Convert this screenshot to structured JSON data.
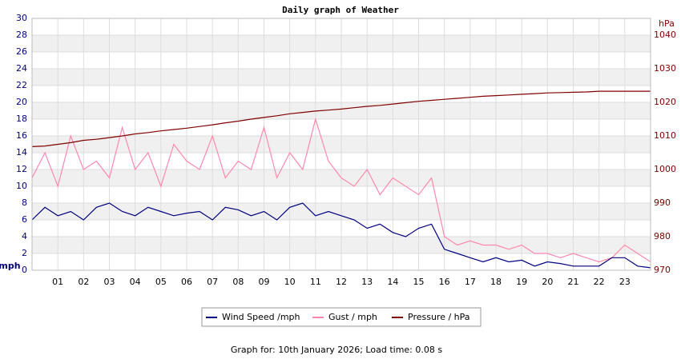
{
  "chart_data": {
    "type": "line",
    "title": "Daily graph of Weather",
    "y_label": "mph",
    "y2_label": "hPa",
    "footer": "Graph for: 10th January 2026; Load time: 0.08 s",
    "x": [
      0,
      0.5,
      1,
      1.5,
      2,
      2.5,
      3,
      3.5,
      4,
      4.5,
      5,
      5.5,
      6,
      6.5,
      7,
      7.5,
      8,
      8.5,
      9,
      9.5,
      10,
      10.5,
      11,
      11.5,
      12,
      12.5,
      13,
      13.5,
      14,
      14.5,
      15,
      15.5,
      16,
      16.5,
      17,
      17.5,
      18,
      18.5,
      19,
      19.5,
      20,
      20.5,
      21,
      21.5,
      22,
      22.5,
      23,
      23.5,
      24
    ],
    "xlim": [
      0,
      24
    ],
    "xticks": [
      {
        "value": 1,
        "label": "01"
      },
      {
        "value": 2,
        "label": "02"
      },
      {
        "value": 3,
        "label": "03"
      },
      {
        "value": 4,
        "label": "04"
      },
      {
        "value": 5,
        "label": "05"
      },
      {
        "value": 6,
        "label": "06"
      },
      {
        "value": 7,
        "label": "07"
      },
      {
        "value": 8,
        "label": "08"
      },
      {
        "value": 9,
        "label": "09"
      },
      10,
      11,
      12,
      13,
      14,
      15,
      16,
      17,
      18,
      19,
      20,
      21,
      22,
      23
    ],
    "ylim": [
      0,
      30
    ],
    "yticks": [
      0,
      2,
      4,
      6,
      8,
      10,
      12,
      14,
      16,
      18,
      20,
      22,
      24,
      26,
      28,
      30
    ],
    "y2lim": [
      970,
      1045
    ],
    "y2ticks": [
      970,
      980,
      990,
      1000,
      1010,
      1020,
      1030,
      1040
    ],
    "grid": true,
    "series": [
      {
        "name": "Gust / mph",
        "color": "#ff88aa",
        "values": [
          11,
          14,
          10,
          16,
          12,
          13,
          11,
          17,
          12,
          14,
          10,
          15,
          13,
          12,
          16,
          11,
          13,
          12,
          17,
          11,
          14,
          12,
          18,
          13,
          11,
          10,
          12,
          9,
          11,
          10,
          9,
          11,
          4,
          3,
          3.5,
          3,
          3,
          2.5,
          3,
          2,
          2,
          1.5,
          2,
          1.5,
          1,
          1.5,
          3,
          2,
          1
        ]
      },
      {
        "name": "Wind Speed /mph",
        "color": "#000080",
        "values": [
          6,
          7.5,
          6.5,
          7,
          6,
          7.5,
          8,
          7,
          6.5,
          7.5,
          7,
          6.5,
          6.8,
          7,
          6,
          7.5,
          7.2,
          6.5,
          7,
          6,
          7.5,
          8,
          6.5,
          7,
          6.5,
          6,
          5,
          5.5,
          4.5,
          4,
          5,
          5.5,
          2.5,
          2,
          1.5,
          1,
          1.5,
          1,
          1.2,
          0.5,
          1,
          0.8,
          0.5,
          0.5,
          0.5,
          1.5,
          1.5,
          0.5,
          0.3
        ]
      },
      {
        "name": "Pressure / hPa",
        "color": "#800000",
        "axis": "y2",
        "values": [
          1006.8,
          1007,
          1007.5,
          1008,
          1008.7,
          1009,
          1009.5,
          1010,
          1010.6,
          1011,
          1011.5,
          1011.9,
          1012.3,
          1012.8,
          1013.3,
          1013.9,
          1014.4,
          1015,
          1015.5,
          1016,
          1016.6,
          1017,
          1017.4,
          1017.7,
          1018,
          1018.4,
          1018.8,
          1019.1,
          1019.5,
          1019.9,
          1020.3,
          1020.6,
          1020.9,
          1021.2,
          1021.5,
          1021.8,
          1022,
          1022.2,
          1022.4,
          1022.6,
          1022.8,
          1022.9,
          1023,
          1023.1,
          1023.3,
          1023.3,
          1023.3,
          1023.3,
          1023.3
        ]
      }
    ],
    "legend_order": [
      1,
      0,
      2
    ]
  }
}
